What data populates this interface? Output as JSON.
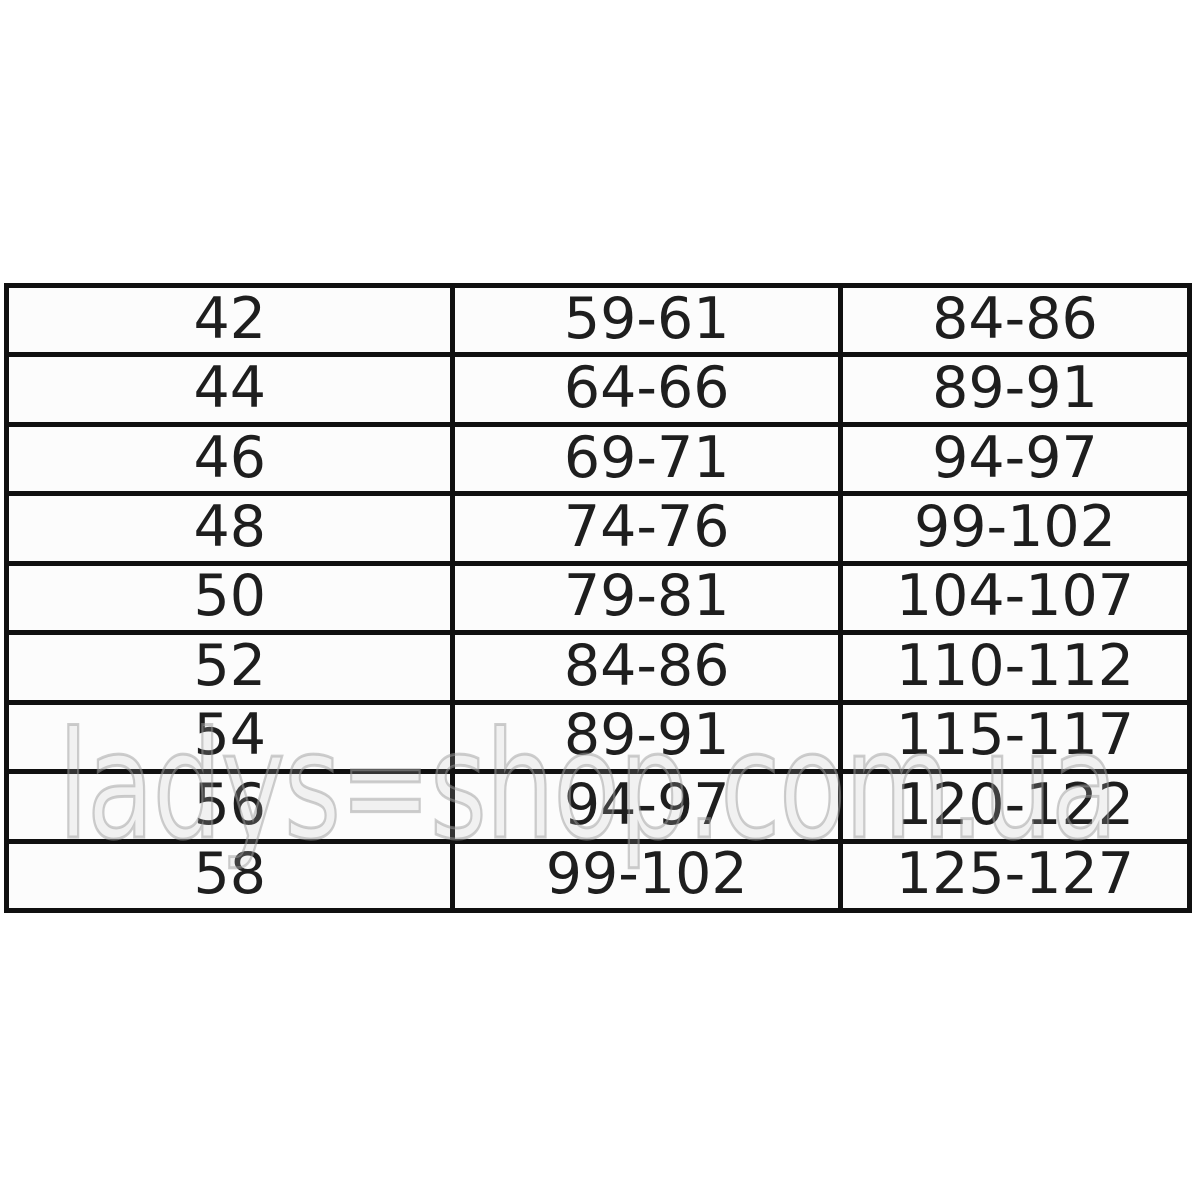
{
  "page": {
    "background": "#ffffff"
  },
  "watermark": {
    "text": "ladys=shop.com.ua",
    "stroke_color": "#9e9e9e"
  },
  "size_table": {
    "border_color": "#101010",
    "cell_background": "#fcfcfc",
    "text_color": "#1e1e1e",
    "rows": [
      [
        "42",
        "59-61",
        "84-86"
      ],
      [
        "44",
        "64-66",
        "89-91"
      ],
      [
        "46",
        "69-71",
        "94-97"
      ],
      [
        "48",
        "74-76",
        "99-102"
      ],
      [
        "50",
        "79-81",
        "104-107"
      ],
      [
        "52",
        "84-86",
        "110-112"
      ],
      [
        "54",
        "89-91",
        "115-117"
      ],
      [
        "56",
        "94-97",
        "120-122"
      ],
      [
        "58",
        "99-102",
        "125-127"
      ]
    ]
  }
}
